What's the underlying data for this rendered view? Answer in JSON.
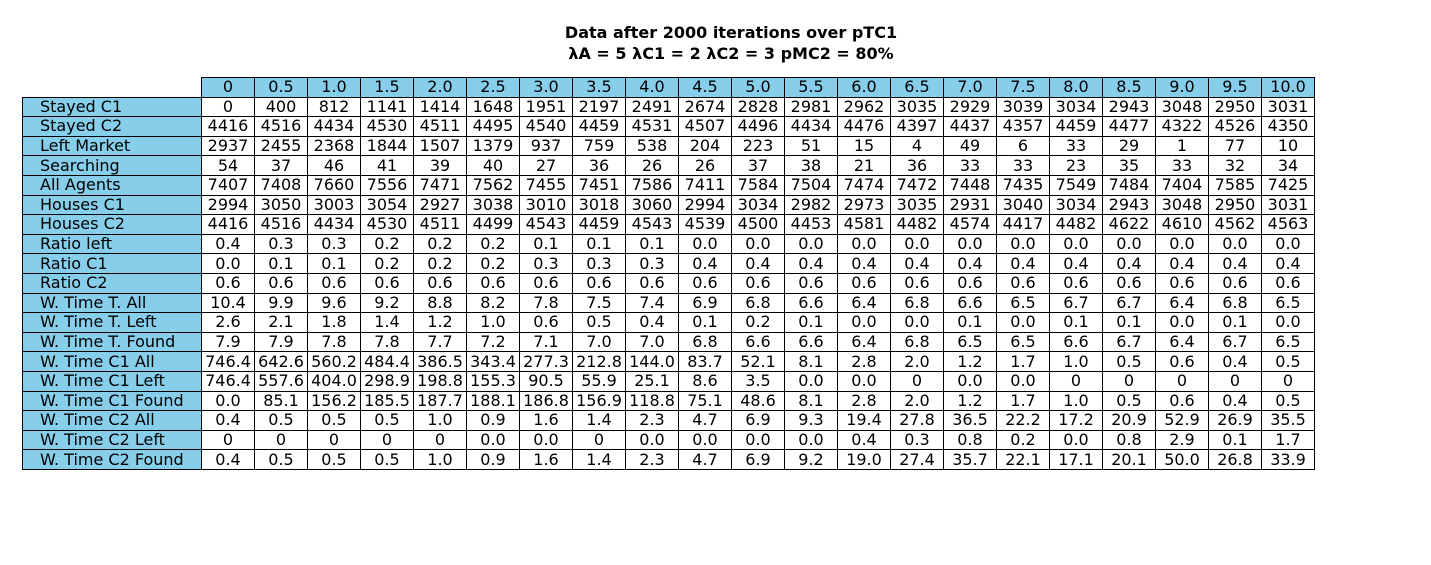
{
  "chart_data": {
    "type": "table",
    "title": "Data after 2000 iterations over pTC1",
    "subtitle": "λA = 5 λC1 = 2 λC2 = 3 pMC2 = 80%",
    "columns": [
      "0",
      "0.5",
      "1.0",
      "1.5",
      "2.0",
      "2.5",
      "3.0",
      "3.5",
      "4.0",
      "4.5",
      "5.0",
      "5.5",
      "6.0",
      "6.5",
      "7.0",
      "7.5",
      "8.0",
      "8.5",
      "9.0",
      "9.5",
      "10.0"
    ],
    "rows": [
      {
        "label": "Stayed C1",
        "values": [
          "0",
          "400",
          "812",
          "1141",
          "1414",
          "1648",
          "1951",
          "2197",
          "2491",
          "2674",
          "2828",
          "2981",
          "2962",
          "3035",
          "2929",
          "3039",
          "3034",
          "2943",
          "3048",
          "2950",
          "3031"
        ]
      },
      {
        "label": "Stayed C2",
        "values": [
          "4416",
          "4516",
          "4434",
          "4530",
          "4511",
          "4495",
          "4540",
          "4459",
          "4531",
          "4507",
          "4496",
          "4434",
          "4476",
          "4397",
          "4437",
          "4357",
          "4459",
          "4477",
          "4322",
          "4526",
          "4350"
        ]
      },
      {
        "label": "Left Market",
        "values": [
          "2937",
          "2455",
          "2368",
          "1844",
          "1507",
          "1379",
          "937",
          "759",
          "538",
          "204",
          "223",
          "51",
          "15",
          "4",
          "49",
          "6",
          "33",
          "29",
          "1",
          "77",
          "10"
        ]
      },
      {
        "label": "Searching",
        "values": [
          "54",
          "37",
          "46",
          "41",
          "39",
          "40",
          "27",
          "36",
          "26",
          "26",
          "37",
          "38",
          "21",
          "36",
          "33",
          "33",
          "23",
          "35",
          "33",
          "32",
          "34"
        ]
      },
      {
        "label": "All Agents",
        "values": [
          "7407",
          "7408",
          "7660",
          "7556",
          "7471",
          "7562",
          "7455",
          "7451",
          "7586",
          "7411",
          "7584",
          "7504",
          "7474",
          "7472",
          "7448",
          "7435",
          "7549",
          "7484",
          "7404",
          "7585",
          "7425"
        ]
      },
      {
        "label": "Houses C1",
        "values": [
          "2994",
          "3050",
          "3003",
          "3054",
          "2927",
          "3038",
          "3010",
          "3018",
          "3060",
          "2994",
          "3034",
          "2982",
          "2973",
          "3035",
          "2931",
          "3040",
          "3034",
          "2943",
          "3048",
          "2950",
          "3031"
        ]
      },
      {
        "label": "Houses C2",
        "values": [
          "4416",
          "4516",
          "4434",
          "4530",
          "4511",
          "4499",
          "4543",
          "4459",
          "4543",
          "4539",
          "4500",
          "4453",
          "4581",
          "4482",
          "4574",
          "4417",
          "4482",
          "4622",
          "4610",
          "4562",
          "4563"
        ]
      },
      {
        "label": "Ratio left",
        "values": [
          "0.4",
          "0.3",
          "0.3",
          "0.2",
          "0.2",
          "0.2",
          "0.1",
          "0.1",
          "0.1",
          "0.0",
          "0.0",
          "0.0",
          "0.0",
          "0.0",
          "0.0",
          "0.0",
          "0.0",
          "0.0",
          "0.0",
          "0.0",
          "0.0"
        ]
      },
      {
        "label": "Ratio C1",
        "values": [
          "0.0",
          "0.1",
          "0.1",
          "0.2",
          "0.2",
          "0.2",
          "0.3",
          "0.3",
          "0.3",
          "0.4",
          "0.4",
          "0.4",
          "0.4",
          "0.4",
          "0.4",
          "0.4",
          "0.4",
          "0.4",
          "0.4",
          "0.4",
          "0.4"
        ]
      },
      {
        "label": "Ratio C2",
        "values": [
          "0.6",
          "0.6",
          "0.6",
          "0.6",
          "0.6",
          "0.6",
          "0.6",
          "0.6",
          "0.6",
          "0.6",
          "0.6",
          "0.6",
          "0.6",
          "0.6",
          "0.6",
          "0.6",
          "0.6",
          "0.6",
          "0.6",
          "0.6",
          "0.6"
        ]
      },
      {
        "label": "W. Time T. All",
        "values": [
          "10.4",
          "9.9",
          "9.6",
          "9.2",
          "8.8",
          "8.2",
          "7.8",
          "7.5",
          "7.4",
          "6.9",
          "6.8",
          "6.6",
          "6.4",
          "6.8",
          "6.6",
          "6.5",
          "6.7",
          "6.7",
          "6.4",
          "6.8",
          "6.5"
        ]
      },
      {
        "label": "W. Time T. Left",
        "values": [
          "2.6",
          "2.1",
          "1.8",
          "1.4",
          "1.2",
          "1.0",
          "0.6",
          "0.5",
          "0.4",
          "0.1",
          "0.2",
          "0.1",
          "0.0",
          "0.0",
          "0.1",
          "0.0",
          "0.1",
          "0.1",
          "0.0",
          "0.1",
          "0.0"
        ]
      },
      {
        "label": "W. Time T. Found",
        "values": [
          "7.9",
          "7.9",
          "7.8",
          "7.8",
          "7.7",
          "7.2",
          "7.1",
          "7.0",
          "7.0",
          "6.8",
          "6.6",
          "6.6",
          "6.4",
          "6.8",
          "6.5",
          "6.5",
          "6.6",
          "6.7",
          "6.4",
          "6.7",
          "6.5"
        ]
      },
      {
        "label": "W. Time C1 All",
        "values": [
          "746.4",
          "642.6",
          "560.2",
          "484.4",
          "386.5",
          "343.4",
          "277.3",
          "212.8",
          "144.0",
          "83.7",
          "52.1",
          "8.1",
          "2.8",
          "2.0",
          "1.2",
          "1.7",
          "1.0",
          "0.5",
          "0.6",
          "0.4",
          "0.5"
        ]
      },
      {
        "label": "W. Time C1 Left",
        "values": [
          "746.4",
          "557.6",
          "404.0",
          "298.9",
          "198.8",
          "155.3",
          "90.5",
          "55.9",
          "25.1",
          "8.6",
          "3.5",
          "0.0",
          "0.0",
          "0",
          "0.0",
          "0.0",
          "0",
          "0",
          "0",
          "0",
          "0"
        ]
      },
      {
        "label": "W. Time C1 Found",
        "values": [
          "0.0",
          "85.1",
          "156.2",
          "185.5",
          "187.7",
          "188.1",
          "186.8",
          "156.9",
          "118.8",
          "75.1",
          "48.6",
          "8.1",
          "2.8",
          "2.0",
          "1.2",
          "1.7",
          "1.0",
          "0.5",
          "0.6",
          "0.4",
          "0.5"
        ]
      },
      {
        "label": "W. Time C2 All",
        "values": [
          "0.4",
          "0.5",
          "0.5",
          "0.5",
          "1.0",
          "0.9",
          "1.6",
          "1.4",
          "2.3",
          "4.7",
          "6.9",
          "9.3",
          "19.4",
          "27.8",
          "36.5",
          "22.2",
          "17.2",
          "20.9",
          "52.9",
          "26.9",
          "35.5"
        ]
      },
      {
        "label": "W. Time C2 Left",
        "values": [
          "0",
          "0",
          "0",
          "0",
          "0",
          "0.0",
          "0.0",
          "0",
          "0.0",
          "0.0",
          "0.0",
          "0.0",
          "0.4",
          "0.3",
          "0.8",
          "0.2",
          "0.0",
          "0.8",
          "2.9",
          "0.1",
          "1.7"
        ]
      },
      {
        "label": "W. Time C2 Found",
        "values": [
          "0.4",
          "0.5",
          "0.5",
          "0.5",
          "1.0",
          "0.9",
          "1.6",
          "1.4",
          "2.3",
          "4.7",
          "6.9",
          "9.2",
          "19.0",
          "27.4",
          "35.7",
          "22.1",
          "17.1",
          "20.1",
          "50.0",
          "26.8",
          "33.9"
        ]
      }
    ],
    "colors": {
      "header_fill": "#87ceeb",
      "cell_fill": "#ffffff",
      "border": "#000000"
    }
  }
}
